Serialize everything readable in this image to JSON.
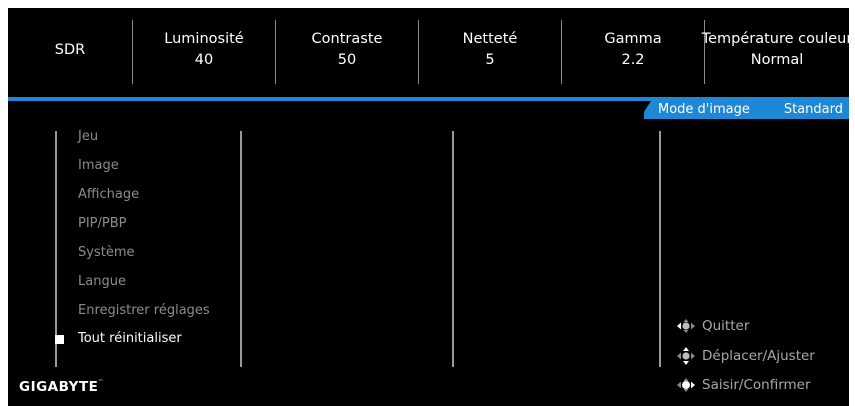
{
  "topbar": {
    "items": [
      {
        "label": "SDR",
        "value": ""
      },
      {
        "label": "Luminosité",
        "value": "40"
      },
      {
        "label": "Contraste",
        "value": "50"
      },
      {
        "label": "Netteté",
        "value": "5"
      },
      {
        "label": "Gamma",
        "value": "2.2"
      },
      {
        "label": "Température couleur",
        "value": "Normal"
      }
    ]
  },
  "mode_tab": {
    "label": "Mode d'image",
    "value": "Standard"
  },
  "menu": {
    "items": [
      "Jeu",
      "Image",
      "Affichage",
      "PIP/PBP",
      "Système",
      "Langue",
      "Enregistrer réglages",
      "Tout réinitialiser"
    ],
    "selected": "Tout réinitialiser"
  },
  "hints": {
    "quit": "Quitter",
    "move": "Déplacer/Ajuster",
    "enter": "Saisir/Confirmer"
  },
  "brand": {
    "name": "GIGABYTE",
    "mark": "™"
  },
  "colors": {
    "accent": "#1e88d6",
    "background": "#000000",
    "inactive_text": "#8c8c8c"
  },
  "icons": [
    "joystick-left-icon",
    "joystick-updown-icon",
    "joystick-press-icon",
    "selection-square-icon"
  ]
}
